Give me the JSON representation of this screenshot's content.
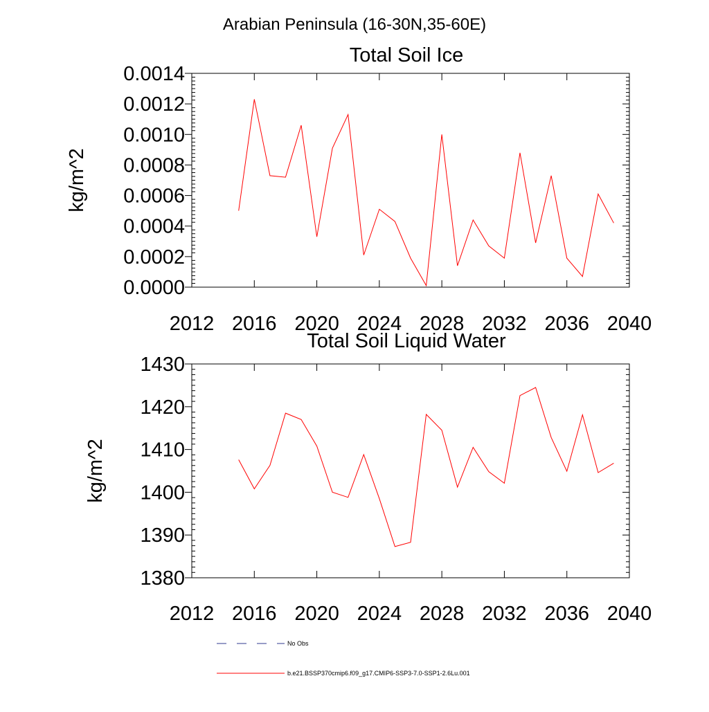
{
  "figure": {
    "title": "Arabian Peninsula (16-30N,35-60E)"
  },
  "legend": {
    "entries": [
      {
        "label": "No Obs",
        "color": "#2f3a8f",
        "style": "dashed"
      },
      {
        "label": "b.e21.BSSP370cmip6.f09_g17.CMIP6-SSP3-7.0-SSP1-2.6Lu.001",
        "color": "#ff0000",
        "style": "solid"
      }
    ]
  },
  "chart_data": [
    {
      "type": "line",
      "title": "Total Soil Ice",
      "xlabel": "",
      "ylabel": "kg/m^2",
      "xlim": [
        2012,
        2040
      ],
      "ylim": [
        0,
        0.0014
      ],
      "x_ticks": [
        2012,
        2016,
        2020,
        2024,
        2028,
        2032,
        2036,
        2040
      ],
      "y_ticks": [
        "0.0000",
        "0.0002",
        "0.0004",
        "0.0006",
        "0.0008",
        "0.0010",
        "0.0012",
        "0.0014"
      ],
      "grid": false,
      "series": [
        {
          "name": "b.e21.BSSP370cmip6.f09_g17.CMIP6-SSP3-7.0-SSP1-2.6Lu.001",
          "color": "#ff0000",
          "x": [
            2015,
            2016,
            2017,
            2018,
            2019,
            2020,
            2021,
            2022,
            2023,
            2024,
            2025,
            2026,
            2027,
            2028,
            2029,
            2030,
            2031,
            2032,
            2033,
            2034,
            2035,
            2036,
            2037,
            2038,
            2039
          ],
          "y": [
            0.0005,
            0.00123,
            0.00073,
            0.00072,
            0.00106,
            0.00033,
            0.00091,
            0.00113,
            0.00021,
            0.00051,
            0.00043,
            0.00019,
            1e-05,
            0.001,
            0.00014,
            0.00044,
            0.00027,
            0.00019,
            0.00088,
            0.00029,
            0.00073,
            0.00019,
            7e-05,
            0.00061,
            0.00042
          ]
        }
      ]
    },
    {
      "type": "line",
      "title": "Total Soil Liquid Water",
      "xlabel": "",
      "ylabel": "kg/m^2",
      "xlim": [
        2012,
        2040
      ],
      "ylim": [
        1380,
        1430
      ],
      "x_ticks": [
        2012,
        2016,
        2020,
        2024,
        2028,
        2032,
        2036,
        2040
      ],
      "y_ticks": [
        "1380",
        "1390",
        "1400",
        "1410",
        "1420",
        "1430"
      ],
      "grid": false,
      "series": [
        {
          "name": "b.e21.BSSP370cmip6.f09_g17.CMIP6-SSP3-7.0-SSP1-2.6Lu.001",
          "color": "#ff0000",
          "x": [
            2015,
            2016,
            2017,
            2018,
            2019,
            2020,
            2021,
            2022,
            2023,
            2024,
            2025,
            2026,
            2027,
            2028,
            2029,
            2030,
            2031,
            2032,
            2033,
            2034,
            2035,
            2036,
            2037,
            2038,
            2039
          ],
          "y": [
            1407.6,
            1400.8,
            1406.3,
            1418.5,
            1417.0,
            1410.8,
            1400.0,
            1398.8,
            1408.8,
            1398.5,
            1387.3,
            1388.3,
            1418.2,
            1414.5,
            1401.2,
            1410.5,
            1404.8,
            1402.1,
            1422.6,
            1424.5,
            1412.8,
            1404.9,
            1418.1,
            1404.6,
            1406.8
          ]
        }
      ]
    }
  ]
}
